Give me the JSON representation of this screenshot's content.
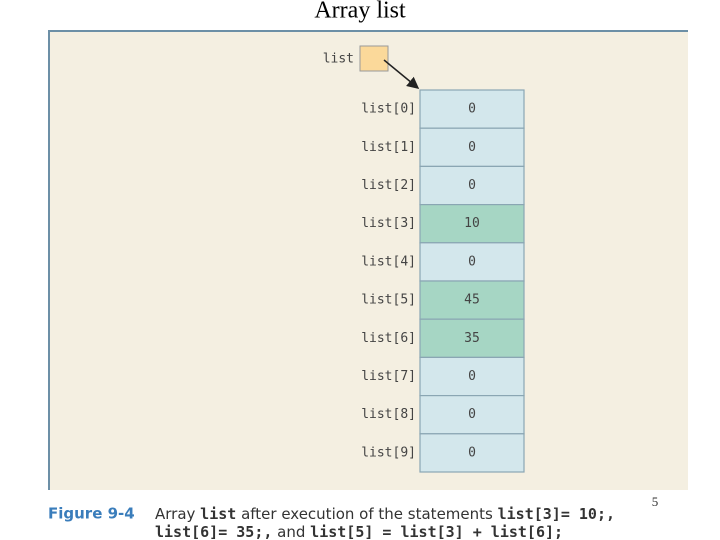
{
  "header": {
    "title": "Array list",
    "page_number": "5"
  },
  "figure": {
    "pointer": {
      "label": "list",
      "color": "#fbd99a"
    },
    "array": {
      "cells": [
        {
          "label": "list[0]",
          "value": "0",
          "color": "#d3e7ec"
        },
        {
          "label": "list[1]",
          "value": "0",
          "color": "#d3e7ec"
        },
        {
          "label": "list[2]",
          "value": "0",
          "color": "#d3e7ec"
        },
        {
          "label": "list[3]",
          "value": "10",
          "color": "#a6d6c4"
        },
        {
          "label": "list[4]",
          "value": "0",
          "color": "#d3e7ec"
        },
        {
          "label": "list[5]",
          "value": "45",
          "color": "#a6d6c4"
        },
        {
          "label": "list[6]",
          "value": "35",
          "color": "#a6d6c4"
        },
        {
          "label": "list[7]",
          "value": "0",
          "color": "#d3e7ec"
        },
        {
          "label": "list[8]",
          "value": "0",
          "color": "#d3e7ec"
        },
        {
          "label": "list[9]",
          "value": "0",
          "color": "#d3e7ec"
        }
      ]
    },
    "caption": {
      "label": "Figure 9-4",
      "line1": [
        "Array ",
        "list",
        " after execution of the statements ",
        "list[3]= 10;,"
      ],
      "line2": [
        "list[6]= 35;,",
        " and ",
        "list[5] = list[3] + list[6];"
      ]
    }
  }
}
